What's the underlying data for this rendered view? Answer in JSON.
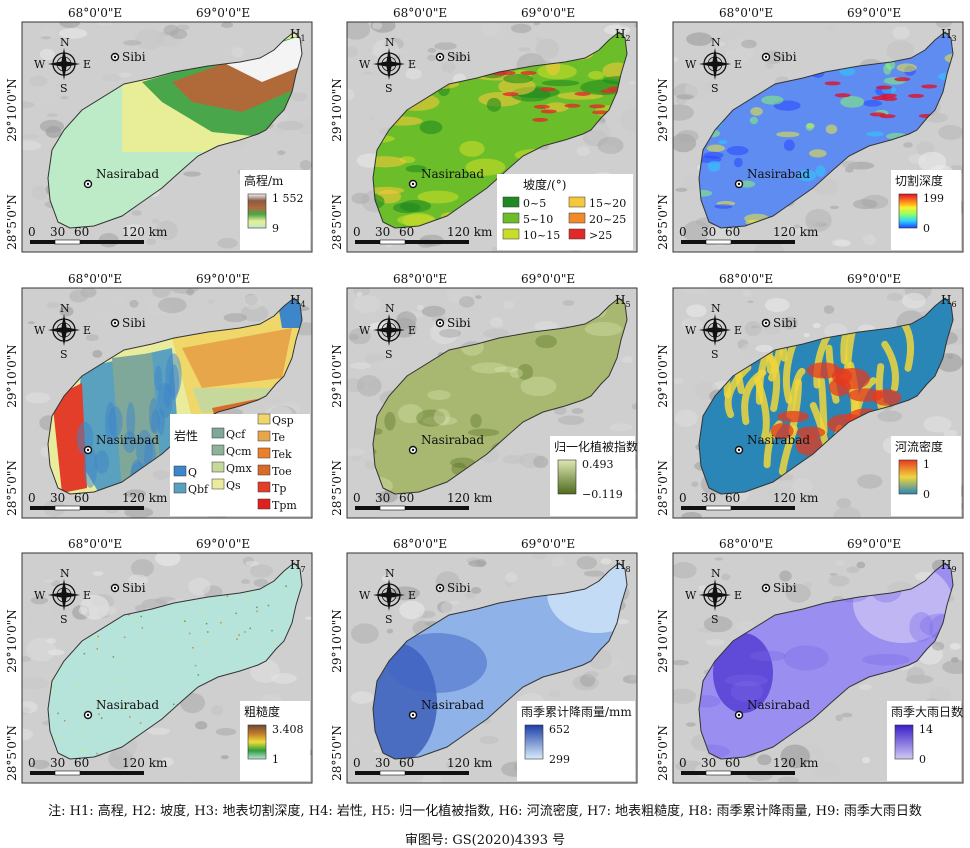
{
  "labels": {
    "lon_left": "68°0'0\"E",
    "lon_right": "69°0'0\"E",
    "lat_top": "29°10'0\"N",
    "lat_bottom": "28°5'0\"N",
    "city_a": "Sibi",
    "city_b": "Nasirabad",
    "compass_n": "N",
    "compass_s": "S",
    "compass_e": "E",
    "compass_w": "W",
    "scale_0": "0",
    "scale_30": "30",
    "scale_60": "60",
    "scale_120": "120 km"
  },
  "colors": {
    "basemap": "#cfcfcf",
    "elev": [
      "#bdebc8",
      "#e8ee98",
      "#4aa64a",
      "#b06a3a",
      "#8a5a45",
      "#f4f4f4"
    ],
    "slope": [
      "#1f8a1f",
      "#6cbd2a",
      "#c8dc28",
      "#f4c83a",
      "#f08a2a",
      "#e02a2a"
    ],
    "cut": [
      "#2040ff",
      "#2ad1ff",
      "#8cff6a",
      "#fff02a",
      "#ff7a1a",
      "#e0102a"
    ],
    "ndvi": [
      "#4f6b1e",
      "#dfe7b4"
    ],
    "river": [
      "#2a86b6",
      "#f0d63c",
      "#e53a1e"
    ],
    "rough": [
      "#b7e4da",
      "#2e9c3a",
      "#f0dc3a",
      "#c07a2a",
      "#6e4a3a"
    ],
    "rain": [
      "#d8ecfb",
      "#1d3fa8"
    ],
    "days": [
      "#cfc8f4",
      "#3a1ec8"
    ],
    "lith": [
      "#f0d76a",
      "#e8a64a",
      "#eb7f2a",
      "#d96a2a",
      "#e33e2a",
      "#e02020",
      "#3d86c9",
      "#5aa0bf",
      "#7fa89a",
      "#8fb39a",
      "#c6d99a",
      "#e8ec9c"
    ]
  },
  "panels": [
    {
      "id": "H1",
      "sub": "1",
      "legend_title": "高程/m",
      "max": "1 552",
      "min": "9",
      "type": "ramp",
      "ramp": "elev"
    },
    {
      "id": "H2",
      "sub": "2",
      "legend_title": "坡度/(°)",
      "type": "classes",
      "classes": [
        {
          "label": "0~5",
          "color": "#1f8a1f"
        },
        {
          "label": "5~10",
          "color": "#6cbd2a"
        },
        {
          "label": "10~15",
          "color": "#c8dc28"
        },
        {
          "label": "15~20",
          "color": "#f4c83a"
        },
        {
          "label": "20~25",
          "color": "#f08a2a"
        },
        {
          "label": ">25",
          "color": "#e02a2a"
        }
      ]
    },
    {
      "id": "H3",
      "sub": "3",
      "legend_title": "切割深度",
      "max": "199",
      "min": "0",
      "type": "ramp",
      "ramp": "cut"
    },
    {
      "id": "H4",
      "sub": "4",
      "legend_title": "岩性",
      "type": "lithology",
      "classes": [
        {
          "label": "Q",
          "color": "#3d86c9"
        },
        {
          "label": "Qbf",
          "color": "#5aa0bf"
        },
        {
          "label": "Qcf",
          "color": "#7fa89a"
        },
        {
          "label": "Qcm",
          "color": "#8fb39a"
        },
        {
          "label": "Qmx",
          "color": "#c6d99a"
        },
        {
          "label": "Qs",
          "color": "#e8ec9c"
        },
        {
          "label": "Qsp",
          "color": "#f0d76a"
        },
        {
          "label": "Te",
          "color": "#e8a64a"
        },
        {
          "label": "Tek",
          "color": "#eb7f2a"
        },
        {
          "label": "Toe",
          "color": "#d96a2a"
        },
        {
          "label": "Tp",
          "color": "#e33e2a"
        },
        {
          "label": "Tpm",
          "color": "#e02020"
        }
      ]
    },
    {
      "id": "H5",
      "sub": "5",
      "legend_title": "归一化植被指数",
      "max": "0.493",
      "min": "−0.119",
      "type": "ramp",
      "ramp": "ndvi"
    },
    {
      "id": "H6",
      "sub": "6",
      "legend_title": "河流密度",
      "max": "1",
      "min": "0",
      "type": "ramp",
      "ramp": "river"
    },
    {
      "id": "H7",
      "sub": "7",
      "legend_title": "粗糙度",
      "max": "3.408",
      "min": "1",
      "type": "ramp",
      "ramp": "rough"
    },
    {
      "id": "H8",
      "sub": "8",
      "legend_title": "雨季累计降雨量/mm",
      "max": "652",
      "min": "299",
      "type": "ramp",
      "ramp": "rain"
    },
    {
      "id": "H9",
      "sub": "9",
      "legend_title": "雨季大雨日数",
      "max": "14",
      "min": "0",
      "type": "ramp",
      "ramp": "days"
    }
  ],
  "footnote": "注: H1: 高程, H2: 坡度, H3: 地表切割深度, H4: 岩性, H5: 归一化植被指数, H6: 河流密度, H7: 地表粗糙度, H8: 雨季累计降雨量, H9: 雨季大雨日数",
  "review_no": "审图号: GS(2020)4393 号"
}
